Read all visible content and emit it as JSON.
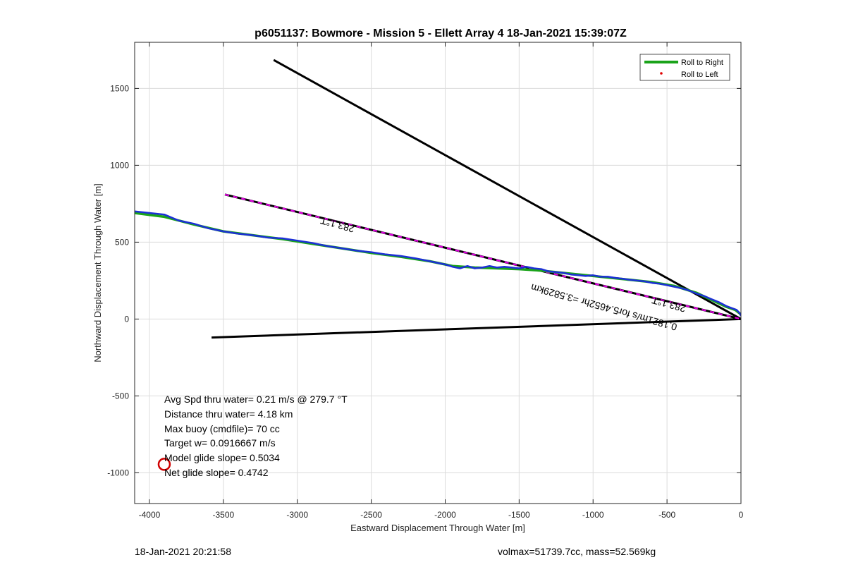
{
  "chart_data": {
    "type": "line",
    "title": "p6051137: Bowmore - Mission 5 - Ellett Array 4 18-Jan-2021 15:39:07Z",
    "xlabel": "Eastward Displacement Through Water [m]",
    "ylabel": "Northward Displacement Through Water [m]",
    "xlim": [
      -4100,
      0
    ],
    "ylim": [
      -1200,
      1800
    ],
    "xticks": [
      -4000,
      -3500,
      -3000,
      -2500,
      -2000,
      -1500,
      -1000,
      -500,
      0
    ],
    "yticks": [
      -1000,
      -500,
      0,
      500,
      1000,
      1500
    ],
    "grid": true,
    "legend": {
      "placement": "top-right",
      "entries": [
        {
          "label": "Roll to Right",
          "color": "#1aa31a",
          "style": "line"
        },
        {
          "label": "Roll to Left",
          "color": "#e00000",
          "style": "dot"
        }
      ]
    },
    "series": [
      {
        "name": "Roll to Right",
        "color": "#1aa31a",
        "x": [
          -4100,
          -3900,
          -3700,
          -3500,
          -3300,
          -3100,
          -2900,
          -2700,
          -2500,
          -2300,
          -2100,
          -1950,
          -1800,
          -1650,
          -1500,
          -1350,
          -1200,
          -1050,
          -900,
          -750,
          -600,
          -450,
          -300,
          -200,
          -100,
          -40,
          0
        ],
        "y": [
          690,
          665,
          615,
          570,
          545,
          520,
          490,
          460,
          430,
          405,
          375,
          345,
          335,
          330,
          325,
          315,
          300,
          285,
          270,
          255,
          240,
          215,
          170,
          125,
          80,
          60,
          30
        ]
      },
      {
        "name": "track",
        "color": "#1c2fd6",
        "x": [
          -4100,
          -4000,
          -3900,
          -3800,
          -3700,
          -3600,
          -3500,
          -3400,
          -3300,
          -3200,
          -3100,
          -3000,
          -2900,
          -2800,
          -2700,
          -2600,
          -2500,
          -2400,
          -2300,
          -2200,
          -2100,
          -2000,
          -1950,
          -1900,
          -1850,
          -1800,
          -1750,
          -1700,
          -1650,
          -1600,
          -1550,
          -1500,
          -1450,
          -1400,
          -1350,
          -1300,
          -1250,
          -1200,
          -1150,
          -1100,
          -1050,
          -1000,
          -950,
          -900,
          -850,
          -800,
          -750,
          -700,
          -650,
          -600,
          -550,
          -500,
          -450,
          -400,
          -350,
          -300,
          -250,
          -200,
          -150,
          -100,
          -60,
          -30,
          -10,
          0
        ],
        "y": [
          700,
          690,
          680,
          640,
          620,
          590,
          570,
          555,
          545,
          530,
          525,
          510,
          495,
          475,
          460,
          445,
          435,
          420,
          410,
          395,
          375,
          355,
          340,
          330,
          345,
          330,
          335,
          345,
          335,
          340,
          335,
          330,
          340,
          330,
          325,
          310,
          305,
          300,
          290,
          285,
          280,
          285,
          275,
          275,
          268,
          262,
          255,
          250,
          245,
          235,
          230,
          220,
          210,
          200,
          185,
          165,
          150,
          130,
          110,
          85,
          70,
          60,
          40,
          20
        ]
      }
    ],
    "lines": [
      {
        "name": "upper-bound",
        "color": "#000000",
        "x": [
          -3160,
          0
        ],
        "y": [
          1685,
          0
        ]
      },
      {
        "name": "lower-bound",
        "color": "#000000",
        "x": [
          -3580,
          0
        ],
        "y": [
          -120,
          0
        ]
      },
      {
        "name": "mean-heading",
        "color": "#000000",
        "dash_color": "#e600e6",
        "x": [
          -3490,
          0
        ],
        "y": [
          810,
          0
        ]
      }
    ],
    "markers": [
      {
        "name": "start-marker",
        "color": "#d00000",
        "x": [
          -3900
        ],
        "y": [
          -945
        ]
      }
    ],
    "annotations": {
      "heading_top": "283.1°T",
      "heading_bottom": "283.1°T",
      "speed_line": "0.1821m/s for5.4652hr =3.5829km"
    },
    "stats": [
      "Avg Spd thru water=  0.21 m/s @ 279.7 °T",
      "Distance thru water=  4.18 km",
      "Max buoy (cmdfile)= 70 cc",
      "Target w= 0.0916667 m/s",
      "Model glide slope= 0.5034",
      "Net glide slope= 0.4742"
    ]
  },
  "footer": {
    "timestamp": "18-Jan-2021 20:21:58",
    "vehicle_info": "volmax=51739.7cc, mass=52.569kg"
  }
}
